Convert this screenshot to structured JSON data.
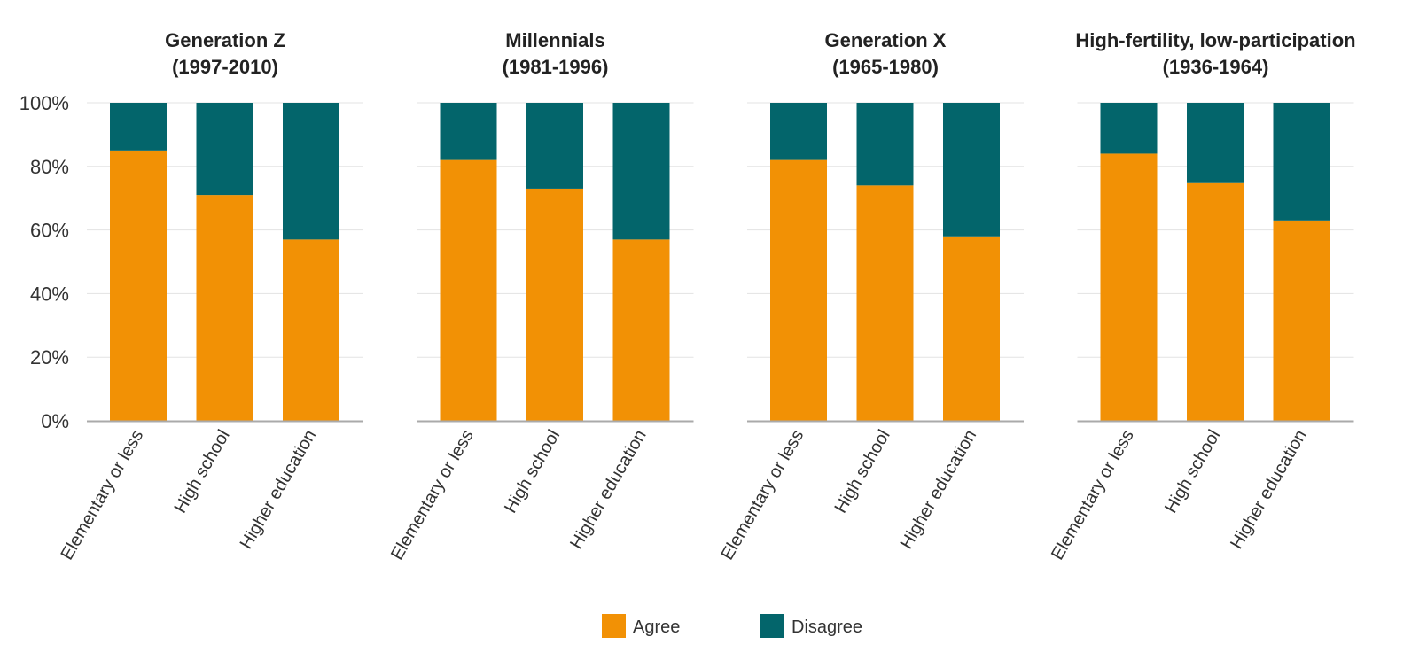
{
  "chart_data": {
    "type": "bar",
    "stacked": true,
    "ylim": [
      0,
      100
    ],
    "yticks": [
      "0%",
      "20%",
      "40%",
      "60%",
      "80%",
      "100%"
    ],
    "grid": true,
    "legend_position": "bottom",
    "colors": {
      "Agree": "#F29105",
      "Disagree": "#03656B"
    },
    "categories": [
      "Elementary or less",
      "High school",
      "Higher education"
    ],
    "legend": [
      "Agree",
      "Disagree"
    ],
    "panels": [
      {
        "title_line1": "Generation Z",
        "title_line2": "(1997-2010)",
        "series": [
          {
            "name": "Agree",
            "values": [
              85,
              71,
              57
            ]
          },
          {
            "name": "Disagree",
            "values": [
              15,
              29,
              43
            ]
          }
        ]
      },
      {
        "title_line1": "Millennials",
        "title_line2": "(1981-1996)",
        "series": [
          {
            "name": "Agree",
            "values": [
              82,
              73,
              57
            ]
          },
          {
            "name": "Disagree",
            "values": [
              18,
              27,
              43
            ]
          }
        ]
      },
      {
        "title_line1": "Generation X",
        "title_line2": "(1965-1980)",
        "series": [
          {
            "name": "Agree",
            "values": [
              82,
              74,
              58
            ]
          },
          {
            "name": "Disagree",
            "values": [
              18,
              26,
              42
            ]
          }
        ]
      },
      {
        "title_line1": "High-fertility, low-participation",
        "title_line2": "(1936-1964)",
        "series": [
          {
            "name": "Agree",
            "values": [
              84,
              75,
              63
            ]
          },
          {
            "name": "Disagree",
            "values": [
              16,
              25,
              37
            ]
          }
        ]
      }
    ]
  }
}
